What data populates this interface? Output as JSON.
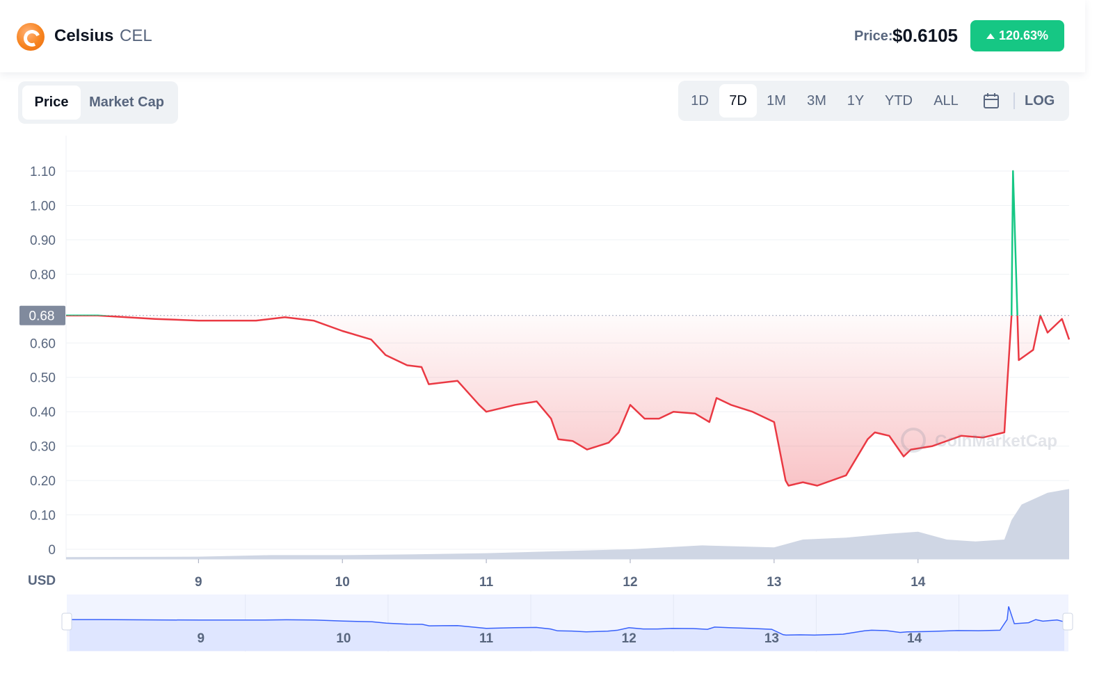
{
  "header": {
    "coin_name": "Celsius",
    "coin_symbol": "CEL",
    "price_label": "Price:",
    "price_value": "$0.6105",
    "change_percent": "120.63%",
    "change_color": "#16c784"
  },
  "metric_toggle": {
    "options": [
      "Price",
      "Market Cap"
    ],
    "active": "Price"
  },
  "time_ranges": {
    "options": [
      "1D",
      "7D",
      "1M",
      "3M",
      "1Y",
      "YTD",
      "ALL"
    ],
    "active": "7D"
  },
  "calendar_icon": "calendar-icon",
  "log_label": "LOG",
  "watermark": "CoinMarketCap",
  "colors": {
    "up": "#16c784",
    "down": "#ea3943",
    "volume": "#cfd6e4",
    "navigator_line": "#3861fb"
  },
  "chart_data": {
    "type": "line",
    "currency_label": "USD",
    "y_ticks": [
      "0",
      "0.10",
      "0.20",
      "0.30",
      "0.40",
      "0.50",
      "0.60",
      "0.80",
      "0.90",
      "1.00",
      "1.10"
    ],
    "ylim": [
      0,
      1.1
    ],
    "x_ticks": [
      "9",
      "10",
      "11",
      "12",
      "13",
      "14"
    ],
    "x_tick_values": [
      9,
      10,
      11,
      12,
      13,
      14
    ],
    "xlim": [
      8.08,
      15.05
    ],
    "reference_price": 0.68,
    "reference_label": "0.68",
    "price_series": {
      "name": "Price",
      "x": [
        8.08,
        8.3,
        8.5,
        8.7,
        9.0,
        9.2,
        9.4,
        9.6,
        9.8,
        10.0,
        10.2,
        10.3,
        10.45,
        10.55,
        10.6,
        10.8,
        10.95,
        11.0,
        11.2,
        11.35,
        11.45,
        11.5,
        11.6,
        11.7,
        11.85,
        11.92,
        12.0,
        12.1,
        12.2,
        12.3,
        12.45,
        12.55,
        12.6,
        12.7,
        12.85,
        13.0,
        13.08,
        13.1,
        13.2,
        13.3,
        13.5,
        13.65,
        13.7,
        13.8,
        13.9,
        13.95,
        14.1,
        14.3,
        14.45,
        14.6,
        14.62,
        14.65,
        14.66,
        14.7,
        14.8,
        14.85,
        14.9,
        15.0,
        15.05
      ],
      "y": [
        0.68,
        0.68,
        0.675,
        0.67,
        0.665,
        0.665,
        0.665,
        0.675,
        0.665,
        0.635,
        0.61,
        0.565,
        0.535,
        0.53,
        0.48,
        0.49,
        0.42,
        0.4,
        0.42,
        0.43,
        0.38,
        0.32,
        0.315,
        0.29,
        0.31,
        0.34,
        0.42,
        0.38,
        0.38,
        0.4,
        0.395,
        0.37,
        0.44,
        0.42,
        0.4,
        0.37,
        0.2,
        0.185,
        0.195,
        0.185,
        0.215,
        0.32,
        0.34,
        0.33,
        0.27,
        0.29,
        0.3,
        0.33,
        0.325,
        0.34,
        0.48,
        0.68,
        1.1,
        0.55,
        0.58,
        0.68,
        0.63,
        0.67,
        0.61
      ]
    },
    "volume_series": {
      "name": "Volume",
      "x": [
        8.08,
        9.0,
        9.5,
        10.0,
        10.5,
        11.0,
        11.5,
        12.0,
        12.5,
        13.0,
        13.1,
        13.2,
        13.5,
        13.8,
        14.0,
        14.1,
        14.2,
        14.4,
        14.6,
        14.65,
        14.72,
        14.9,
        15.05
      ],
      "y": [
        0.005,
        0.006,
        0.01,
        0.01,
        0.012,
        0.015,
        0.02,
        0.025,
        0.035,
        0.03,
        0.04,
        0.05,
        0.055,
        0.065,
        0.07,
        0.06,
        0.05,
        0.045,
        0.05,
        0.1,
        0.14,
        0.17,
        0.18
      ]
    }
  }
}
